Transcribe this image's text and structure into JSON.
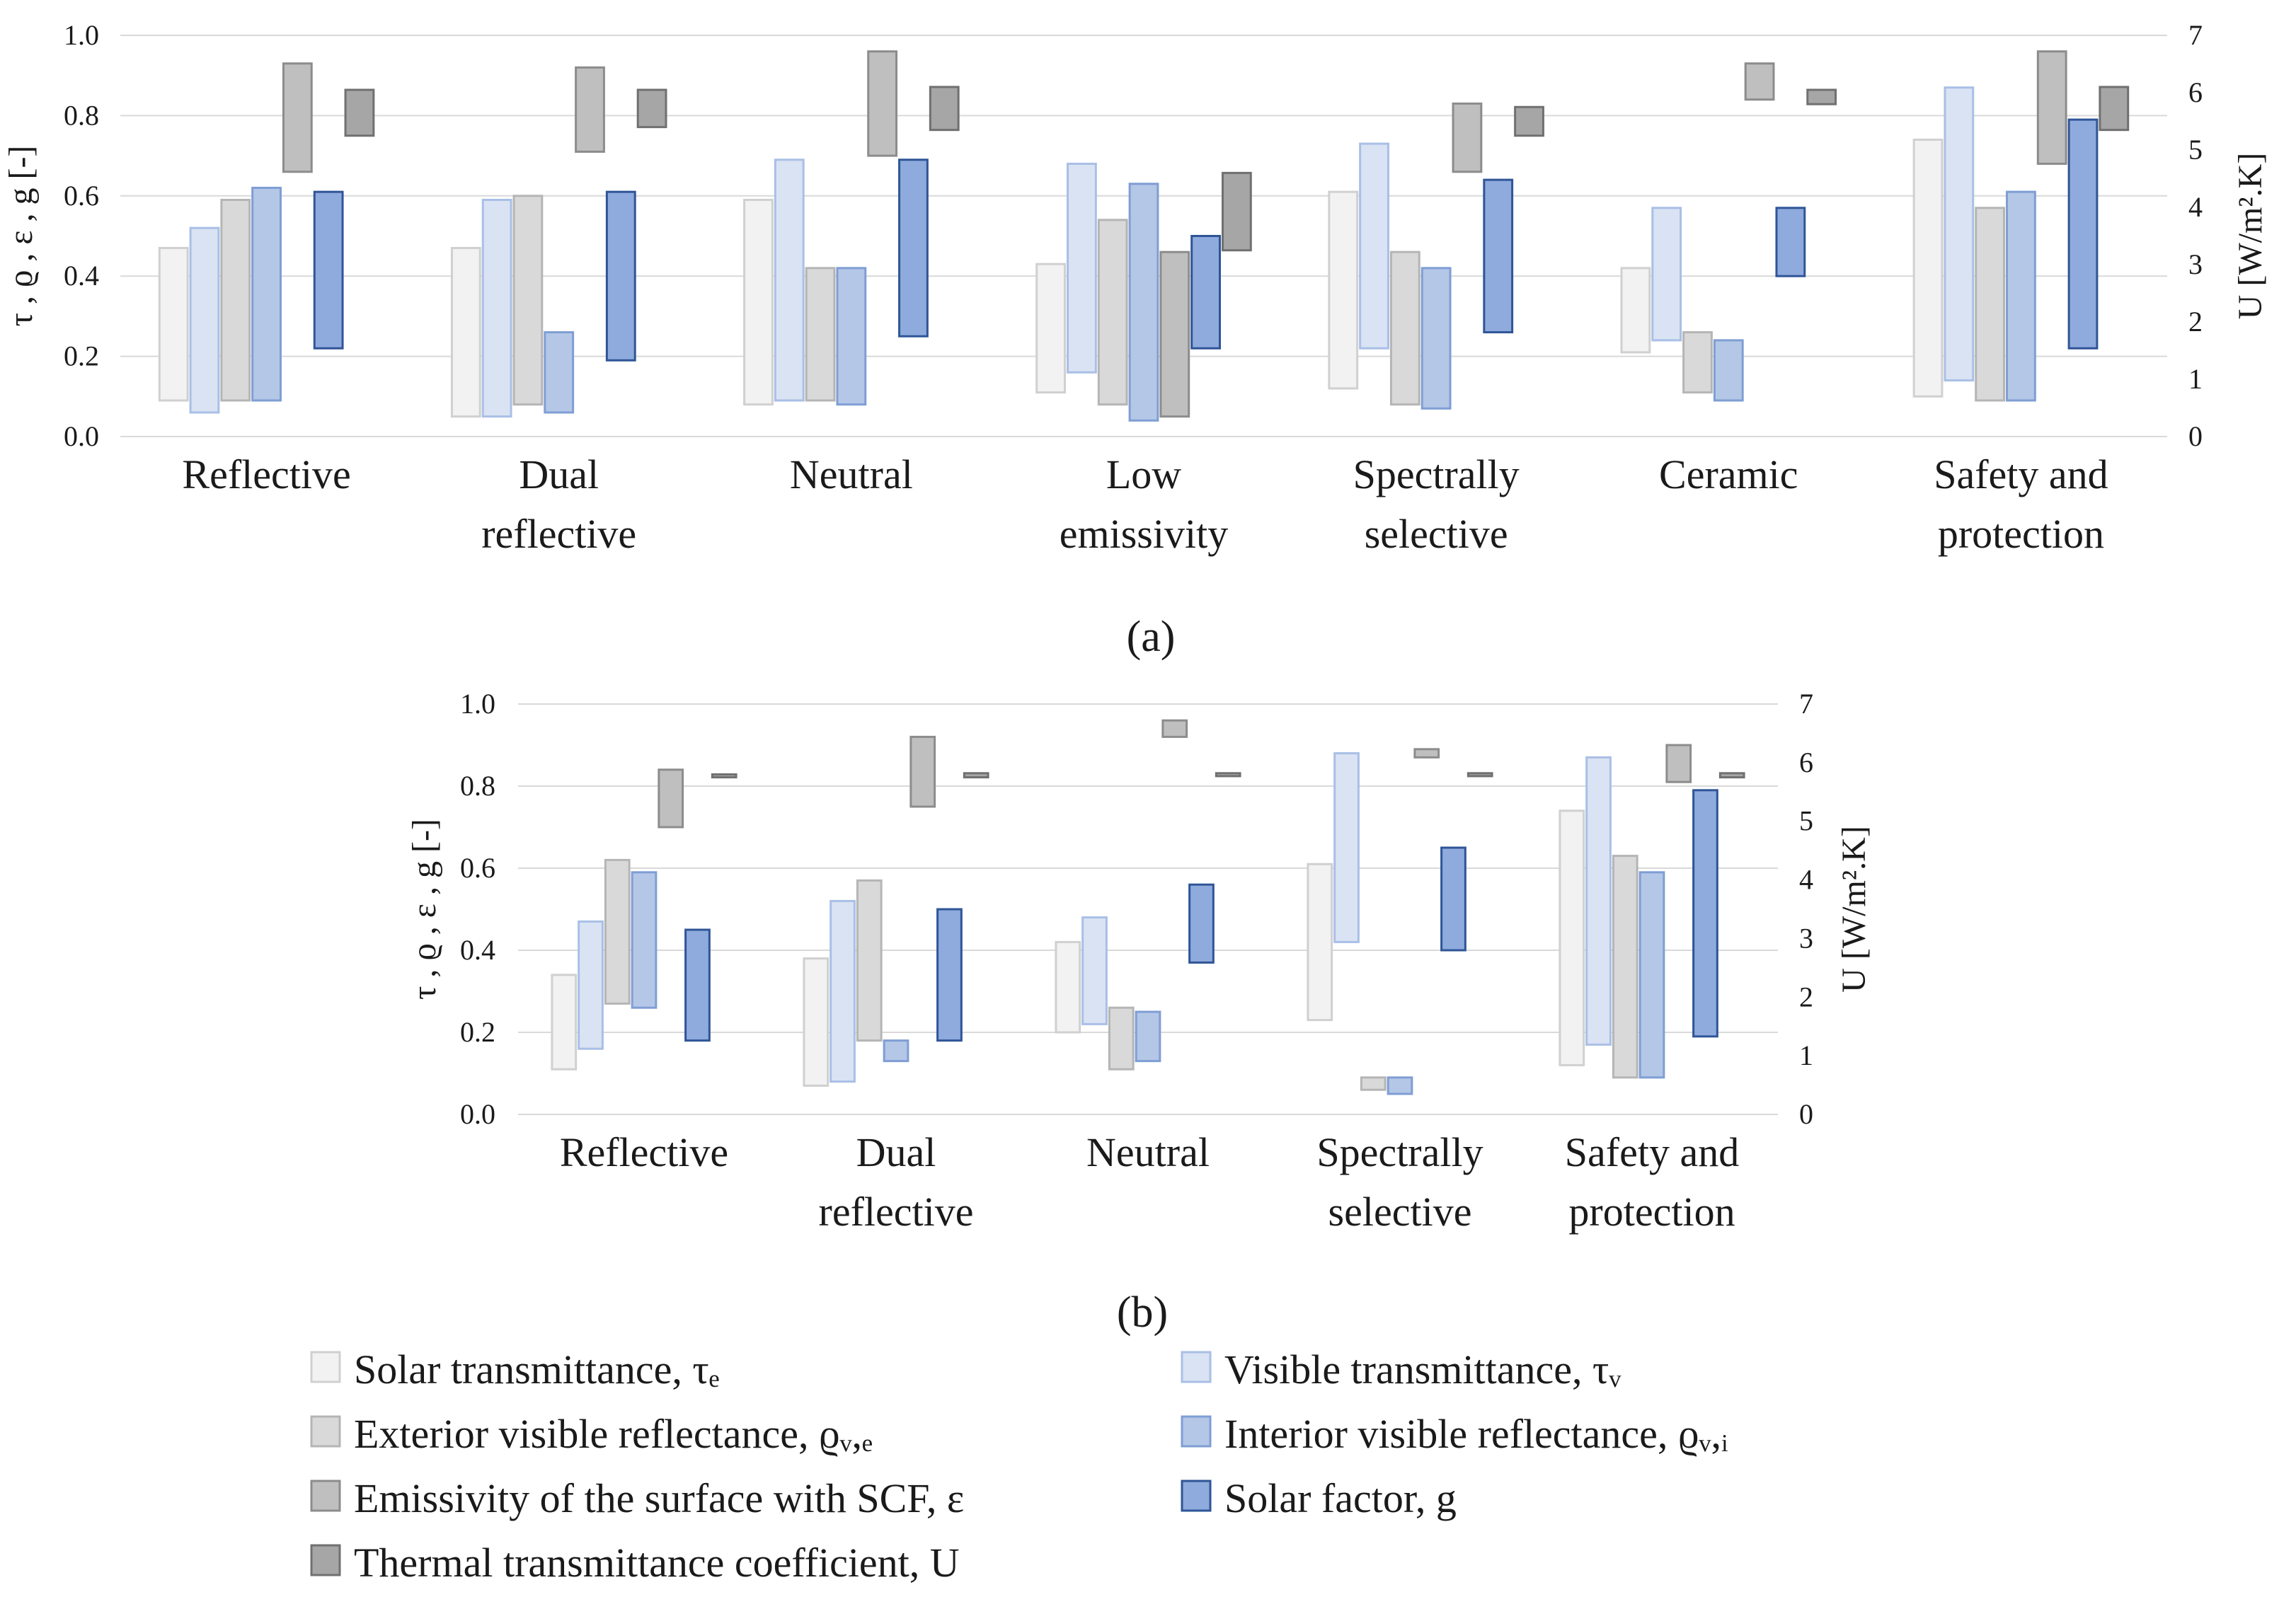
{
  "legend": [
    {
      "key": "tau_e",
      "label": "Solar transmittance, τₑ",
      "fill": "#f2f2f2",
      "stroke": "#d0d0d0"
    },
    {
      "key": "tau_v",
      "label": "Visible transmittance, τᵥ",
      "fill": "#dae3f3",
      "stroke": "#a9bfe6"
    },
    {
      "key": "rho_ve",
      "label": "Exterior visible reflectance, ϱᵥ,ₑ",
      "fill": "#d9d9d9",
      "stroke": "#b5b5b5"
    },
    {
      "key": "rho_vi",
      "label": "Interior visible reflectance, ϱᵥ,ᵢ",
      "fill": "#b4c7e7",
      "stroke": "#7f9ed4"
    },
    {
      "key": "eps",
      "label": "Emissivity of the surface with SCF,  ε",
      "fill": "#bfbfbf",
      "stroke": "#8c8c8c"
    },
    {
      "key": "g",
      "label": "Solar factor, g",
      "fill": "#8faadc",
      "stroke": "#2f5597"
    },
    {
      "key": "U",
      "label": "Thermal transmittance coefficient, U",
      "fill": "#a6a6a6",
      "stroke": "#707070"
    }
  ],
  "chart_data": [
    {
      "type": "bar",
      "subtype": "floating-range",
      "panel_label": "(a)",
      "ylabel": "τ , ϱ , ε , g [-]",
      "y2label": "U [W/m².K]",
      "ylim": [
        0,
        1.0
      ],
      "y2lim": [
        0,
        7
      ],
      "yticks": [
        "0.0",
        "0.2",
        "0.4",
        "0.6",
        "0.8",
        "1.0"
      ],
      "y2ticks": [
        "0",
        "1",
        "2",
        "3",
        "4",
        "5",
        "6",
        "7"
      ],
      "categories": [
        [
          "Reflective"
        ],
        [
          "Dual",
          "reflective"
        ],
        [
          "Neutral"
        ],
        [
          "Low",
          "emissivity"
        ],
        [
          "Spectrally",
          "selective"
        ],
        [
          "Ceramic"
        ],
        [
          "Safety and",
          "protection"
        ]
      ],
      "series": [
        {
          "key": "tau_e",
          "name": "Solar transmittance, τₑ",
          "axis": "left",
          "ranges": [
            [
              0.09,
              0.47
            ],
            [
              0.05,
              0.47
            ],
            [
              0.08,
              0.59
            ],
            [
              0.11,
              0.43
            ],
            [
              0.12,
              0.61
            ],
            [
              0.21,
              0.42
            ],
            [
              0.1,
              0.74
            ]
          ]
        },
        {
          "key": "tau_v",
          "name": "Visible transmittance, τᵥ",
          "axis": "left",
          "ranges": [
            [
              0.06,
              0.52
            ],
            [
              0.05,
              0.59
            ],
            [
              0.09,
              0.69
            ],
            [
              0.16,
              0.68
            ],
            [
              0.22,
              0.73
            ],
            [
              0.24,
              0.57
            ],
            [
              0.14,
              0.87
            ]
          ]
        },
        {
          "key": "rho_ve",
          "name": "Exterior visible reflectance, ϱᵥ,ₑ",
          "axis": "left",
          "ranges": [
            [
              0.09,
              0.59
            ],
            [
              0.08,
              0.6
            ],
            [
              0.09,
              0.42
            ],
            [
              0.08,
              0.54
            ],
            [
              0.08,
              0.46
            ],
            [
              0.11,
              0.26
            ],
            [
              0.09,
              0.57
            ]
          ]
        },
        {
          "key": "rho_vi",
          "name": "Interior visible reflectance, ϱᵥ,ᵢ",
          "axis": "left",
          "ranges": [
            [
              0.09,
              0.62
            ],
            [
              0.06,
              0.26
            ],
            [
              0.08,
              0.42
            ],
            [
              0.04,
              0.63
            ],
            [
              0.07,
              0.42
            ],
            [
              0.09,
              0.24
            ],
            [
              0.09,
              0.61
            ]
          ]
        },
        {
          "key": "eps",
          "name": "Emissivity of the surface with SCF,  ε",
          "axis": "left",
          "ranges": [
            [
              0.66,
              0.93
            ],
            [
              0.71,
              0.92
            ],
            [
              0.7,
              0.96
            ],
            [
              0.05,
              0.46
            ],
            [
              0.66,
              0.83
            ],
            [
              0.84,
              0.93
            ],
            [
              0.68,
              0.96
            ]
          ]
        },
        {
          "key": "g",
          "name": "Solar factor, g",
          "axis": "left",
          "ranges": [
            [
              0.22,
              0.61
            ],
            [
              0.19,
              0.61
            ],
            [
              0.25,
              0.69
            ],
            [
              0.22,
              0.5
            ],
            [
              0.26,
              0.64
            ],
            [
              0.4,
              0.57
            ],
            [
              0.22,
              0.79
            ]
          ]
        },
        {
          "key": "U",
          "name": "Thermal transmittance coefficient, U",
          "axis": "right",
          "ranges": [
            [
              5.25,
              6.05
            ],
            [
              5.4,
              6.05
            ],
            [
              5.35,
              6.1
            ],
            [
              3.25,
              4.6
            ],
            [
              5.25,
              5.75
            ],
            [
              5.8,
              6.05
            ],
            [
              5.35,
              6.1
            ]
          ]
        }
      ]
    },
    {
      "type": "bar",
      "subtype": "floating-range",
      "panel_label": "(b)",
      "ylabel": "τ , ϱ , ε , g [-]",
      "y2label": "U [W/m².K]",
      "ylim": [
        0,
        1.0
      ],
      "y2lim": [
        0,
        7
      ],
      "yticks": [
        "0.0",
        "0.2",
        "0.4",
        "0.6",
        "0.8",
        "1.0"
      ],
      "y2ticks": [
        "0",
        "1",
        "2",
        "3",
        "4",
        "5",
        "6",
        "7"
      ],
      "categories": [
        [
          "Reflective"
        ],
        [
          "Dual",
          "reflective"
        ],
        [
          "Neutral"
        ],
        [
          "Spectrally",
          "selective"
        ],
        [
          "Safety and",
          "protection"
        ]
      ],
      "series": [
        {
          "key": "tau_e",
          "name": "Solar transmittance, τₑ",
          "axis": "left",
          "ranges": [
            [
              0.11,
              0.34
            ],
            [
              0.07,
              0.38
            ],
            [
              0.2,
              0.42
            ],
            [
              0.23,
              0.61
            ],
            [
              0.12,
              0.74
            ]
          ]
        },
        {
          "key": "tau_v",
          "name": "Visible transmittance, τᵥ",
          "axis": "left",
          "ranges": [
            [
              0.16,
              0.47
            ],
            [
              0.08,
              0.52
            ],
            [
              0.22,
              0.48
            ],
            [
              0.42,
              0.88
            ],
            [
              0.17,
              0.87
            ]
          ]
        },
        {
          "key": "rho_ve",
          "name": "Exterior visible reflectance, ϱᵥ,ₑ",
          "axis": "left",
          "ranges": [
            [
              0.27,
              0.62
            ],
            [
              0.18,
              0.57
            ],
            [
              0.11,
              0.26
            ],
            [
              0.06,
              0.09
            ],
            [
              0.09,
              0.63
            ]
          ]
        },
        {
          "key": "rho_vi",
          "name": "Interior visible reflectance, ϱᵥ,ᵢ",
          "axis": "left",
          "ranges": [
            [
              0.26,
              0.59
            ],
            [
              0.13,
              0.18
            ],
            [
              0.13,
              0.25
            ],
            [
              0.05,
              0.09
            ],
            [
              0.09,
              0.59
            ]
          ]
        },
        {
          "key": "eps",
          "name": "Emissivity of the surface with SCF,  ε",
          "axis": "left",
          "ranges": [
            [
              0.7,
              0.84
            ],
            [
              0.75,
              0.92
            ],
            [
              0.92,
              0.96
            ],
            [
              0.87,
              0.89
            ],
            [
              0.81,
              0.9
            ]
          ]
        },
        {
          "key": "g",
          "name": "Solar factor, g",
          "axis": "left",
          "ranges": [
            [
              0.18,
              0.45
            ],
            [
              0.18,
              0.5
            ],
            [
              0.37,
              0.56
            ],
            [
              0.4,
              0.65
            ],
            [
              0.19,
              0.79
            ]
          ]
        },
        {
          "key": "U",
          "name": "Thermal transmittance coefficient, U",
          "axis": "right",
          "ranges": [
            [
              5.75,
              5.8
            ],
            [
              5.75,
              5.82
            ],
            [
              5.77,
              5.82
            ],
            [
              5.77,
              5.82
            ],
            [
              5.75,
              5.82
            ]
          ]
        }
      ]
    }
  ]
}
